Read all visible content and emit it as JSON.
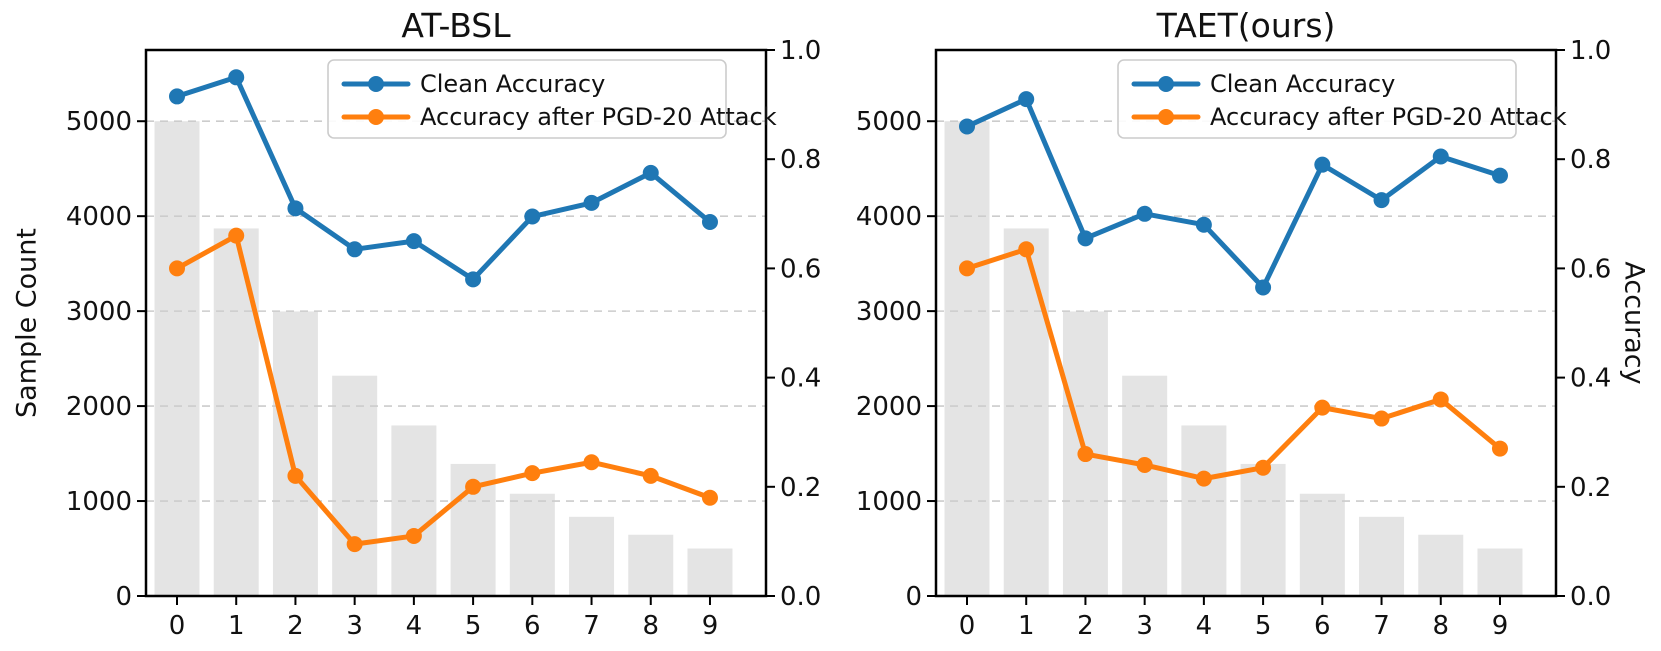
{
  "axes": {
    "left": {
      "label": "Sample Count",
      "ticks": [
        0,
        1000,
        2000,
        3000,
        4000,
        5000
      ],
      "tick_labels": [
        "0",
        "1000",
        "2000",
        "3000",
        "4000",
        "5000"
      ],
      "lim": [
        0,
        5750
      ]
    },
    "right": {
      "label": "Accuracy",
      "ticks": [
        0.0,
        0.2,
        0.4,
        0.6,
        0.8,
        1.0
      ],
      "tick_labels": [
        "0.0",
        "0.2",
        "0.4",
        "0.6",
        "0.8",
        "1.0"
      ],
      "lim": [
        0,
        1
      ]
    },
    "x": {
      "tick_labels": [
        "0",
        "1",
        "2",
        "3",
        "4",
        "5",
        "6",
        "7",
        "8",
        "9"
      ]
    }
  },
  "legend": {
    "position": "upper right",
    "items": [
      {
        "label": "Clean Accuracy",
        "color": "#1f77b4"
      },
      {
        "label": "Accuracy after PGD-20 Attack",
        "color": "#ff7f0e"
      }
    ]
  },
  "style": {
    "bar_color": "#e4e4e4",
    "grid_color": "#cccccc",
    "spine_color": "#000000",
    "blue": "#1f77b4",
    "orange": "#ff7f0e"
  },
  "chart_data": [
    {
      "type": "bar+line",
      "title": "AT-BSL",
      "categories": [
        "0",
        "1",
        "2",
        "3",
        "4",
        "5",
        "6",
        "7",
        "8",
        "9"
      ],
      "bars": {
        "name": "Sample Count",
        "axis": "left",
        "values": [
          5000,
          3871,
          2997,
          2320,
          1796,
          1391,
          1077,
          834,
          645,
          500
        ]
      },
      "series": [
        {
          "name": "Clean Accuracy",
          "axis": "right",
          "color": "#1f77b4",
          "values": [
            0.915,
            0.95,
            0.71,
            0.635,
            0.65,
            0.58,
            0.695,
            0.72,
            0.775,
            0.685
          ]
        },
        {
          "name": "Accuracy after PGD-20 Attack",
          "axis": "right",
          "color": "#ff7f0e",
          "values": [
            0.6,
            0.66,
            0.22,
            0.095,
            0.11,
            0.2,
            0.225,
            0.245,
            0.22,
            0.18
          ]
        }
      ],
      "grid": "horizontal dashed at left-axis ticks 1000-5000"
    },
    {
      "type": "bar+line",
      "title": "TAET(ours)",
      "categories": [
        "0",
        "1",
        "2",
        "3",
        "4",
        "5",
        "6",
        "7",
        "8",
        "9"
      ],
      "bars": {
        "name": "Sample Count",
        "axis": "left",
        "values": [
          5000,
          3871,
          2997,
          2320,
          1796,
          1391,
          1077,
          834,
          645,
          500
        ]
      },
      "series": [
        {
          "name": "Clean Accuracy",
          "axis": "right",
          "color": "#1f77b4",
          "values": [
            0.86,
            0.91,
            0.655,
            0.7,
            0.68,
            0.565,
            0.79,
            0.725,
            0.805,
            0.77
          ]
        },
        {
          "name": "Accuracy after PGD-20 Attack",
          "axis": "right",
          "color": "#ff7f0e",
          "values": [
            0.6,
            0.635,
            0.26,
            0.24,
            0.215,
            0.235,
            0.345,
            0.325,
            0.36,
            0.27
          ]
        }
      ],
      "grid": "horizontal dashed at left-axis ticks 1000-5000"
    }
  ]
}
